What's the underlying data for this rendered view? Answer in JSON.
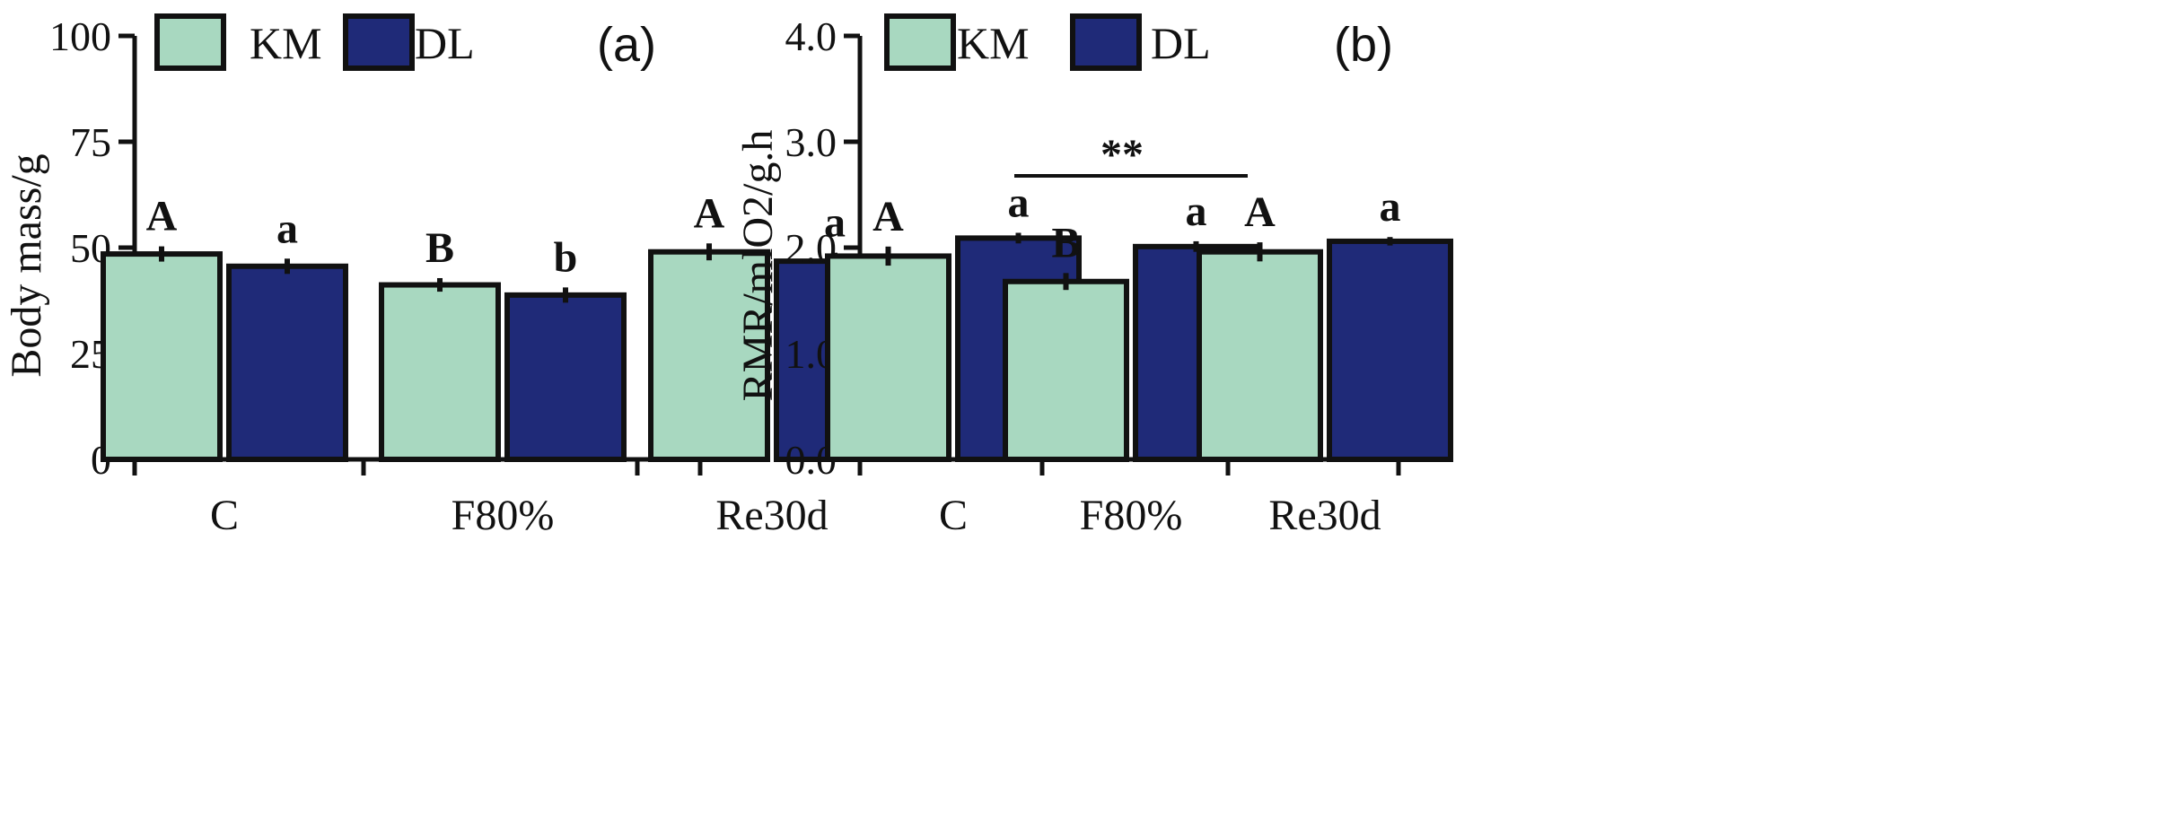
{
  "chart_data": [
    {
      "type": "bar",
      "panel_label": "(a)",
      "ylabel": "Body mass/g",
      "ylim": [
        0,
        100
      ],
      "yticks": [
        "0",
        "25",
        "50",
        "75",
        "100"
      ],
      "categories": [
        "C",
        "F80%",
        "Re30d"
      ],
      "legend": [
        "KM",
        "DL"
      ],
      "colors": {
        "KM": "#a8d8c0",
        "DL": "#1f2a78"
      },
      "series": [
        {
          "name": "KM",
          "values": [
            48.5,
            41.2,
            49.0
          ],
          "errors": [
            1.8,
            1.6,
            2.0
          ],
          "labels": [
            "A",
            "B",
            "A"
          ]
        },
        {
          "name": "DL",
          "values": [
            45.6,
            38.8,
            46.8
          ],
          "errors": [
            1.8,
            1.8,
            2.0
          ],
          "labels": [
            "a",
            "b",
            "a"
          ]
        }
      ]
    },
    {
      "type": "bar",
      "panel_label": "(b)",
      "ylabel": "RMR/mlO2/g.h",
      "ylim": [
        0,
        4.0
      ],
      "yticks": [
        "0.0",
        "1.0",
        "2.0",
        "3.0",
        "4.0"
      ],
      "categories": [
        "C",
        "F80%",
        "Re30d"
      ],
      "legend": [
        "KM",
        "DL"
      ],
      "colors": {
        "KM": "#a8d8c0",
        "DL": "#1f2a78"
      },
      "series": [
        {
          "name": "KM",
          "values": [
            1.92,
            1.68,
            1.96
          ],
          "errors": [
            0.09,
            0.08,
            0.09
          ],
          "labels": [
            "A",
            "B",
            "A"
          ]
        },
        {
          "name": "DL",
          "values": [
            2.09,
            2.01,
            2.06
          ],
          "errors": [
            0.05,
            0.05,
            0.04
          ],
          "labels": [
            "a",
            "a",
            "a"
          ]
        }
      ],
      "annotation": {
        "text": "**",
        "category": "F80%"
      }
    }
  ]
}
